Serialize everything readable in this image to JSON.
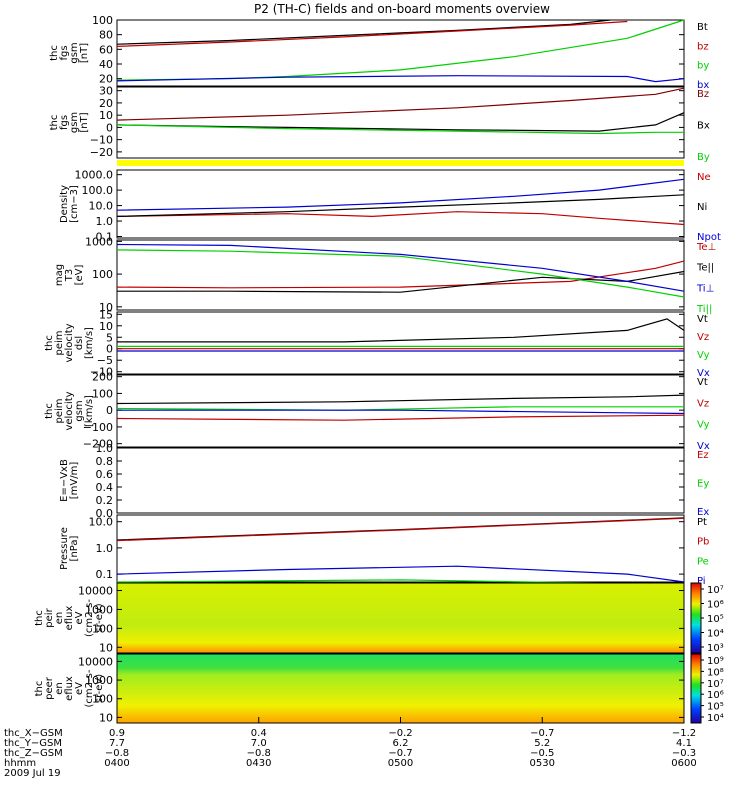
{
  "title": "P2 (TH-C) fields and on-board moments overview",
  "colors": {
    "black": "#000000",
    "red": "#c00000",
    "green": "#00d000",
    "blue": "#0000d0",
    "darkred": "#800000",
    "yellow": "#ffff00"
  },
  "chart_data": [
    {
      "type": "line",
      "id": "fgs-gsm",
      "ylabel": [
        "thc",
        "fgs",
        "gsm",
        "[nT]"
      ],
      "yticks": [
        "20",
        "40",
        "60",
        "80",
        "100"
      ],
      "ylim": [
        10,
        100
      ],
      "series": [
        {
          "name": "Bt",
          "color": "black",
          "points": [
            [
              0,
              67
            ],
            [
              0.2,
              72
            ],
            [
              0.4,
              79
            ],
            [
              0.6,
              86
            ],
            [
              0.8,
              94
            ],
            [
              0.87,
              100
            ]
          ]
        },
        {
          "name": "bz",
          "color": "red",
          "points": [
            [
              0,
              64
            ],
            [
              0.2,
              70
            ],
            [
              0.4,
              77
            ],
            [
              0.6,
              85
            ],
            [
              0.8,
              93
            ],
            [
              0.9,
              98
            ]
          ]
        },
        {
          "name": "by",
          "color": "green",
          "points": [
            [
              0,
              18
            ],
            [
              0.2,
              20
            ],
            [
              0.3,
              23
            ],
            [
              0.5,
              32
            ],
            [
              0.7,
              50
            ],
            [
              0.9,
              75
            ],
            [
              1,
              100
            ]
          ]
        },
        {
          "name": "bx",
          "color": "blue",
          "points": [
            [
              0,
              17
            ],
            [
              0.3,
              22
            ],
            [
              0.6,
              24
            ],
            [
              0.9,
              23
            ],
            [
              0.95,
              16
            ],
            [
              1,
              20
            ]
          ]
        }
      ]
    },
    {
      "type": "line",
      "id": "fgs-gsm-lowpass",
      "ylabel": [
        "thc",
        "fgs",
        "gsm",
        "[nT]"
      ],
      "yticks": [
        "−20",
        "−10",
        "0",
        "10",
        "20",
        "30"
      ],
      "ylim": [
        -25,
        33
      ],
      "series": [
        {
          "name": "Bz",
          "color": "darkred",
          "points": [
            [
              0,
              6
            ],
            [
              0.3,
              10
            ],
            [
              0.6,
              16
            ],
            [
              0.8,
              22
            ],
            [
              0.95,
              27
            ],
            [
              1,
              32
            ]
          ]
        },
        {
          "name": "Bx",
          "color": "black",
          "points": [
            [
              0,
              2
            ],
            [
              0.3,
              0
            ],
            [
              0.6,
              -2
            ],
            [
              0.85,
              -3
            ],
            [
              0.95,
              2
            ],
            [
              1,
              12
            ]
          ]
        },
        {
          "name": "By",
          "color": "green",
          "points": [
            [
              0,
              2
            ],
            [
              0.3,
              -1
            ],
            [
              0.6,
              -3
            ],
            [
              0.85,
              -5
            ],
            [
              0.95,
              -4
            ],
            [
              1,
              -4
            ]
          ]
        }
      ]
    },
    {
      "type": "line",
      "id": "density",
      "ylabel": [
        "Density",
        "[cm−3]"
      ],
      "yscale": "log",
      "yticks": [
        "0.1",
        "1.0",
        "10.0",
        "100.0",
        "1000.0"
      ],
      "ylim": [
        0.08,
        2000
      ],
      "series": [
        {
          "name": "Ne",
          "color": "red",
          "points": [
            [
              0,
              2
            ],
            [
              0.3,
              3
            ],
            [
              0.45,
              2
            ],
            [
              0.6,
              4
            ],
            [
              0.75,
              3
            ],
            [
              0.85,
              1.5
            ],
            [
              1,
              0.6
            ]
          ]
        },
        {
          "name": "Ni",
          "color": "black",
          "points": [
            [
              0,
              2
            ],
            [
              0.3,
              4
            ],
            [
              0.5,
              8
            ],
            [
              0.7,
              15
            ],
            [
              0.85,
              25
            ],
            [
              1,
              50
            ]
          ]
        },
        {
          "name": "Npot",
          "color": "blue",
          "points": [
            [
              0,
              5
            ],
            [
              0.3,
              8
            ],
            [
              0.5,
              15
            ],
            [
              0.7,
              40
            ],
            [
              0.85,
              100
            ],
            [
              1,
              500
            ]
          ]
        }
      ]
    },
    {
      "type": "line",
      "id": "temperature",
      "ylabel": [
        "mag",
        "T3",
        "[eV]"
      ],
      "yscale": "log",
      "yticks": [
        "10",
        "100",
        "1000"
      ],
      "ylim": [
        8,
        1100
      ],
      "series": [
        {
          "name": "Te⊥",
          "color": "red",
          "points": [
            [
              0,
              40
            ],
            [
              0.2,
              38
            ],
            [
              0.5,
              40
            ],
            [
              0.8,
              60
            ],
            [
              0.95,
              150
            ],
            [
              1,
              250
            ]
          ]
        },
        {
          "name": "Te||",
          "color": "black",
          "points": [
            [
              0,
              30
            ],
            [
              0.2,
              30
            ],
            [
              0.5,
              28
            ],
            [
              0.75,
              80
            ],
            [
              0.9,
              60
            ],
            [
              1,
              120
            ]
          ]
        },
        {
          "name": "Ti⊥",
          "color": "blue",
          "points": [
            [
              0,
              800
            ],
            [
              0.2,
              750
            ],
            [
              0.5,
              400
            ],
            [
              0.75,
              150
            ],
            [
              0.9,
              60
            ],
            [
              1,
              30
            ]
          ]
        },
        {
          "name": "Ti||",
          "color": "green",
          "points": [
            [
              0,
              550
            ],
            [
              0.2,
              500
            ],
            [
              0.5,
              350
            ],
            [
              0.75,
              100
            ],
            [
              0.9,
              40
            ],
            [
              1,
              20
            ]
          ]
        }
      ]
    },
    {
      "type": "line",
      "id": "velocity-dsl",
      "ylabel": [
        "thc",
        "peim",
        "velocity",
        "dsl",
        "[km/s]"
      ],
      "yticks": [
        "−10",
        "−5",
        "0",
        "5",
        "10",
        "15"
      ],
      "ylim": [
        -11,
        16
      ],
      "series": [
        {
          "name": "Vt",
          "color": "black",
          "points": [
            [
              0,
              3
            ],
            [
              0.4,
              3
            ],
            [
              0.7,
              5
            ],
            [
              0.9,
              8
            ],
            [
              0.97,
              13
            ],
            [
              1,
              8
            ]
          ]
        },
        {
          "name": "Vz",
          "color": "red",
          "points": [
            [
              0,
              0
            ],
            [
              0.5,
              0
            ],
            [
              1,
              0
            ]
          ]
        },
        {
          "name": "Vy",
          "color": "green",
          "points": [
            [
              0,
              1
            ],
            [
              0.5,
              1
            ],
            [
              1,
              1
            ]
          ]
        },
        {
          "name": "Vx",
          "color": "blue",
          "points": [
            [
              0,
              -1
            ],
            [
              0.5,
              -1
            ],
            [
              1,
              -1
            ]
          ]
        }
      ]
    },
    {
      "type": "line",
      "id": "velocity-gsm",
      "ylabel": [
        "thc",
        "peim",
        "velocity",
        "gsm",
        "[km/s]"
      ],
      "yticks": [
        "−200",
        "−100",
        "0",
        "100",
        "200"
      ],
      "ylim": [
        -220,
        210
      ],
      "series": [
        {
          "name": "Vt",
          "color": "black",
          "points": [
            [
              0,
              40
            ],
            [
              0.4,
              50
            ],
            [
              0.7,
              70
            ],
            [
              0.9,
              80
            ],
            [
              1,
              90
            ]
          ]
        },
        {
          "name": "Vz",
          "color": "red",
          "points": [
            [
              0,
              -50
            ],
            [
              0.4,
              -60
            ],
            [
              0.7,
              -40
            ],
            [
              1,
              -30
            ]
          ]
        },
        {
          "name": "Vy",
          "color": "green",
          "points": [
            [
              0,
              10
            ],
            [
              0.4,
              0
            ],
            [
              0.7,
              20
            ],
            [
              1,
              20
            ]
          ]
        },
        {
          "name": "Vx",
          "color": "blue",
          "points": [
            [
              0,
              0
            ],
            [
              0.5,
              0
            ],
            [
              1,
              -20
            ]
          ]
        }
      ]
    },
    {
      "type": "line",
      "id": "efield",
      "ylabel": [
        "E=−VxB",
        "[mV/m]"
      ],
      "yticks": [
        "0.0",
        "0.2",
        "0.4",
        "0.6",
        "0.8",
        "1.0"
      ],
      "ylim": [
        0,
        1
      ],
      "series": [
        {
          "name": "Ez",
          "color": "red",
          "points": []
        },
        {
          "name": "Ey",
          "color": "green",
          "points": []
        },
        {
          "name": "Ex",
          "color": "blue",
          "points": []
        }
      ]
    },
    {
      "type": "line",
      "id": "pressure",
      "ylabel": [
        "Pressure",
        "[nPa]"
      ],
      "yscale": "log",
      "yticks": [
        "0.1",
        "1.0",
        "10.0"
      ],
      "ylim": [
        0.05,
        18
      ],
      "series": [
        {
          "name": "Pt",
          "color": "black",
          "points": [
            [
              0,
              2
            ],
            [
              0.5,
              5
            ],
            [
              1,
              14
            ]
          ]
        },
        {
          "name": "Pb",
          "color": "red",
          "points": [
            [
              0,
              1.9
            ],
            [
              0.5,
              4.8
            ],
            [
              1,
              13.5
            ]
          ]
        },
        {
          "name": "Pe",
          "color": "green",
          "points": [
            [
              0,
              0.05
            ],
            [
              0.5,
              0.06
            ],
            [
              1,
              0.04
            ]
          ]
        },
        {
          "name": "Pi",
          "color": "blue",
          "points": [
            [
              0,
              0.1
            ],
            [
              0.3,
              0.15
            ],
            [
              0.6,
              0.2
            ],
            [
              0.9,
              0.1
            ],
            [
              1,
              0.05
            ]
          ]
        }
      ]
    },
    {
      "type": "heatmap",
      "id": "ion-spectrogram",
      "ylabel": [
        "thc",
        "peir",
        "en",
        "eflux",
        "eV",
        "(cm2-s-",
        "sr-eV)"
      ],
      "yscale": "log",
      "yticks": [
        "10",
        "100",
        "1000",
        "10000"
      ],
      "ylim": [
        5,
        25000
      ],
      "colorbar": [
        "10³",
        "10⁴",
        "10⁵",
        "10⁶",
        "10⁷"
      ]
    },
    {
      "type": "heatmap",
      "id": "electron-spectrogram",
      "ylabel": [
        "thc",
        "peer",
        "en",
        "eflux",
        "eV",
        "(cm2-s-",
        "sr-eV)"
      ],
      "yscale": "log",
      "yticks": [
        "10",
        "100",
        "1000",
        "10000"
      ],
      "ylim": [
        5,
        25000
      ],
      "colorbar": [
        "10⁴",
        "10⁵",
        "10⁶",
        "10⁷",
        "10⁸",
        "10⁹"
      ]
    }
  ],
  "xaxis": {
    "rows": [
      {
        "label": "thc_X−GSM",
        "values": [
          "0.9",
          "0.4",
          "−0.2",
          "−0.7",
          "−1.2"
        ]
      },
      {
        "label": "thc_Y−GSM",
        "values": [
          "7.7",
          "7.0",
          "6.2",
          "5.2",
          "4.1"
        ]
      },
      {
        "label": "thc_Z−GSM",
        "values": [
          "−0.8",
          "−0.8",
          "−0.7",
          "−0.5",
          "−0.3"
        ]
      },
      {
        "label": "hhmm",
        "values": [
          "0400",
          "0430",
          "0500",
          "0530",
          "0600"
        ]
      }
    ],
    "date": "2009 Jul 19"
  }
}
